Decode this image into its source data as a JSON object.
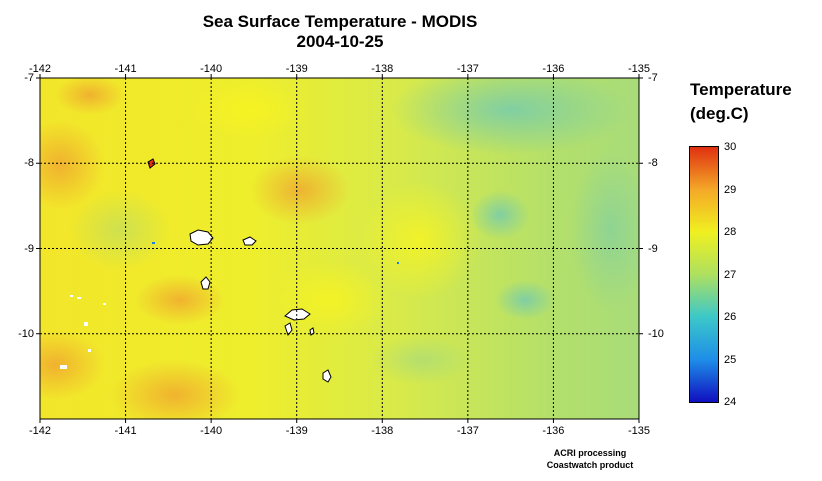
{
  "title": "Sea Surface Temperature - MODIS",
  "date": "2004-10-25",
  "map": {
    "lon_range": [
      -142,
      -135
    ],
    "lat_range": [
      -11,
      -7
    ],
    "lon_ticks": [
      "-142",
      "-141",
      "-140",
      "-139",
      "-138",
      "-137",
      "-136",
      "-135"
    ],
    "lat_ticks": [
      "-7",
      "-8",
      "-9",
      "-10"
    ],
    "grid": "dotted",
    "land_color": "#ffffff"
  },
  "legend": {
    "title_line1": "Temperature",
    "title_line2": "(deg.C)",
    "min": 24,
    "max": 30,
    "tick_labels": [
      "30",
      "29",
      "28",
      "27",
      "26",
      "25",
      "24"
    ],
    "colors": [
      "#1010c0",
      "#1e8ee8",
      "#3cc8c8",
      "#aee060",
      "#f0f020",
      "#f4a828",
      "#e03010"
    ]
  },
  "credits": {
    "line1": "ACRI processing",
    "line2": "Coastwatch product"
  }
}
